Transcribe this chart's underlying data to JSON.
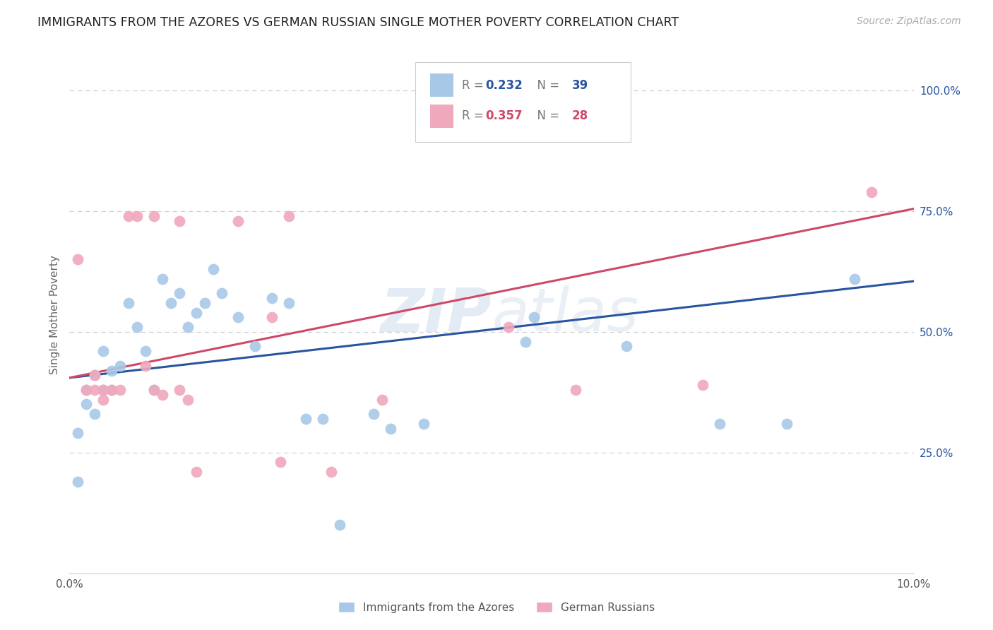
{
  "title": "IMMIGRANTS FROM THE AZORES VS GERMAN RUSSIAN SINGLE MOTHER POVERTY CORRELATION CHART",
  "source": "Source: ZipAtlas.com",
  "ylabel": "Single Mother Poverty",
  "legend_label1": "Immigrants from the Azores",
  "legend_label2": "German Russians",
  "R1": 0.232,
  "N1": 39,
  "R2": 0.357,
  "N2": 28,
  "blue_color": "#a8c8e8",
  "pink_color": "#f0a8bc",
  "blue_line_color": "#2855a0",
  "pink_line_color": "#d04868",
  "blue_x": [
    0.001,
    0.001,
    0.002,
    0.002,
    0.003,
    0.003,
    0.004,
    0.004,
    0.005,
    0.005,
    0.006,
    0.007,
    0.008,
    0.009,
    0.01,
    0.011,
    0.012,
    0.013,
    0.014,
    0.015,
    0.016,
    0.017,
    0.018,
    0.02,
    0.022,
    0.024,
    0.026,
    0.028,
    0.03,
    0.032,
    0.036,
    0.038,
    0.042,
    0.054,
    0.055,
    0.066,
    0.077,
    0.085,
    0.093
  ],
  "blue_y": [
    0.19,
    0.29,
    0.35,
    0.38,
    0.41,
    0.33,
    0.38,
    0.46,
    0.42,
    0.38,
    0.43,
    0.56,
    0.51,
    0.46,
    0.38,
    0.61,
    0.56,
    0.58,
    0.51,
    0.54,
    0.56,
    0.63,
    0.58,
    0.53,
    0.47,
    0.57,
    0.56,
    0.32,
    0.32,
    0.1,
    0.33,
    0.3,
    0.31,
    0.48,
    0.53,
    0.47,
    0.31,
    0.31,
    0.61
  ],
  "pink_x": [
    0.001,
    0.002,
    0.003,
    0.003,
    0.004,
    0.004,
    0.005,
    0.006,
    0.007,
    0.009,
    0.01,
    0.011,
    0.013,
    0.014,
    0.015,
    0.02,
    0.024,
    0.025,
    0.026,
    0.031,
    0.037,
    0.052,
    0.06,
    0.075,
    0.095,
    0.01,
    0.008,
    0.013
  ],
  "pink_y": [
    0.65,
    0.38,
    0.38,
    0.41,
    0.36,
    0.38,
    0.38,
    0.38,
    0.74,
    0.43,
    0.74,
    0.37,
    0.73,
    0.36,
    0.21,
    0.73,
    0.53,
    0.23,
    0.74,
    0.21,
    0.36,
    0.51,
    0.38,
    0.39,
    0.79,
    0.38,
    0.74,
    0.38
  ]
}
